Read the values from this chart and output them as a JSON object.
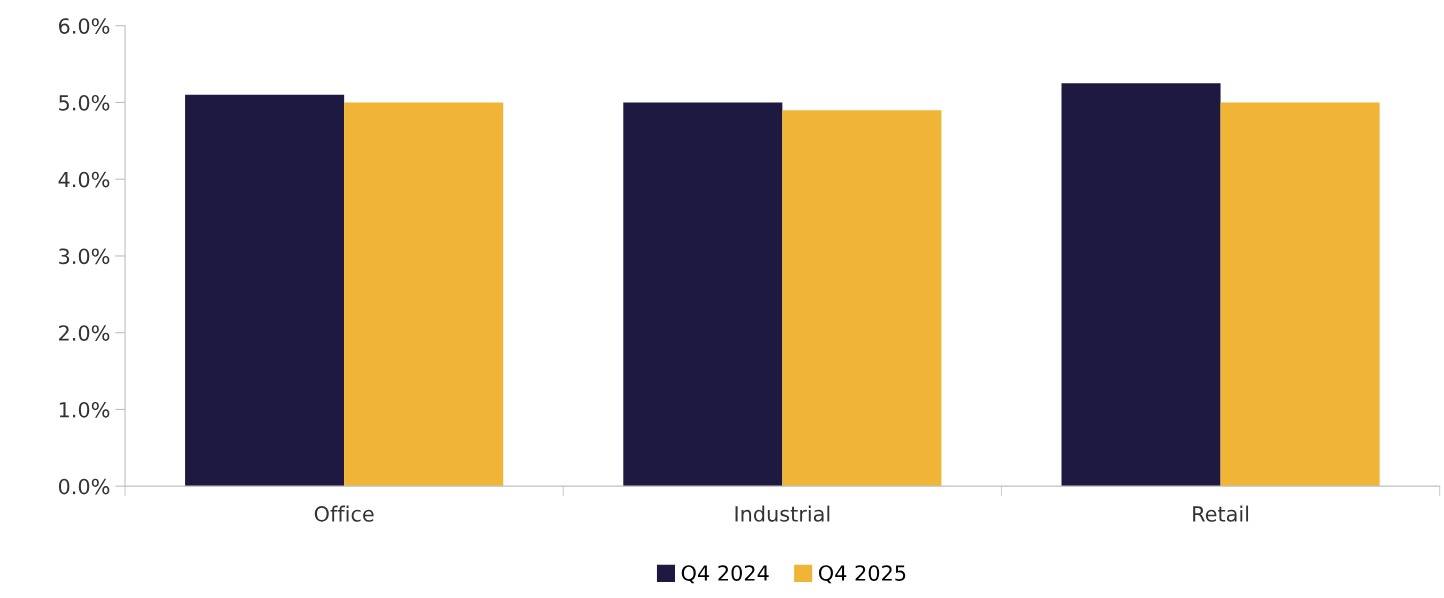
{
  "chart_data": {
    "type": "bar",
    "categories": [
      "Office",
      "Industrial",
      "Retail"
    ],
    "series": [
      {
        "name": "Q4 2024",
        "color": "#1e1940",
        "values": [
          5.1,
          5.0,
          5.25
        ]
      },
      {
        "name": "Q4 2025",
        "color": "#f0b436",
        "values": [
          5.0,
          4.9,
          5.0
        ]
      }
    ],
    "ylim": [
      0,
      6
    ],
    "yticks": [
      {
        "value": 0,
        "label": "0.0%"
      },
      {
        "value": 1,
        "label": "1.0%"
      },
      {
        "value": 2,
        "label": "2.0%"
      },
      {
        "value": 3,
        "label": "3.0%"
      },
      {
        "value": 4,
        "label": "4.0%"
      },
      {
        "value": 5,
        "label": "5.0%"
      },
      {
        "value": 6,
        "label": "6.0%"
      }
    ],
    "grid": false,
    "legend": "bottom"
  }
}
